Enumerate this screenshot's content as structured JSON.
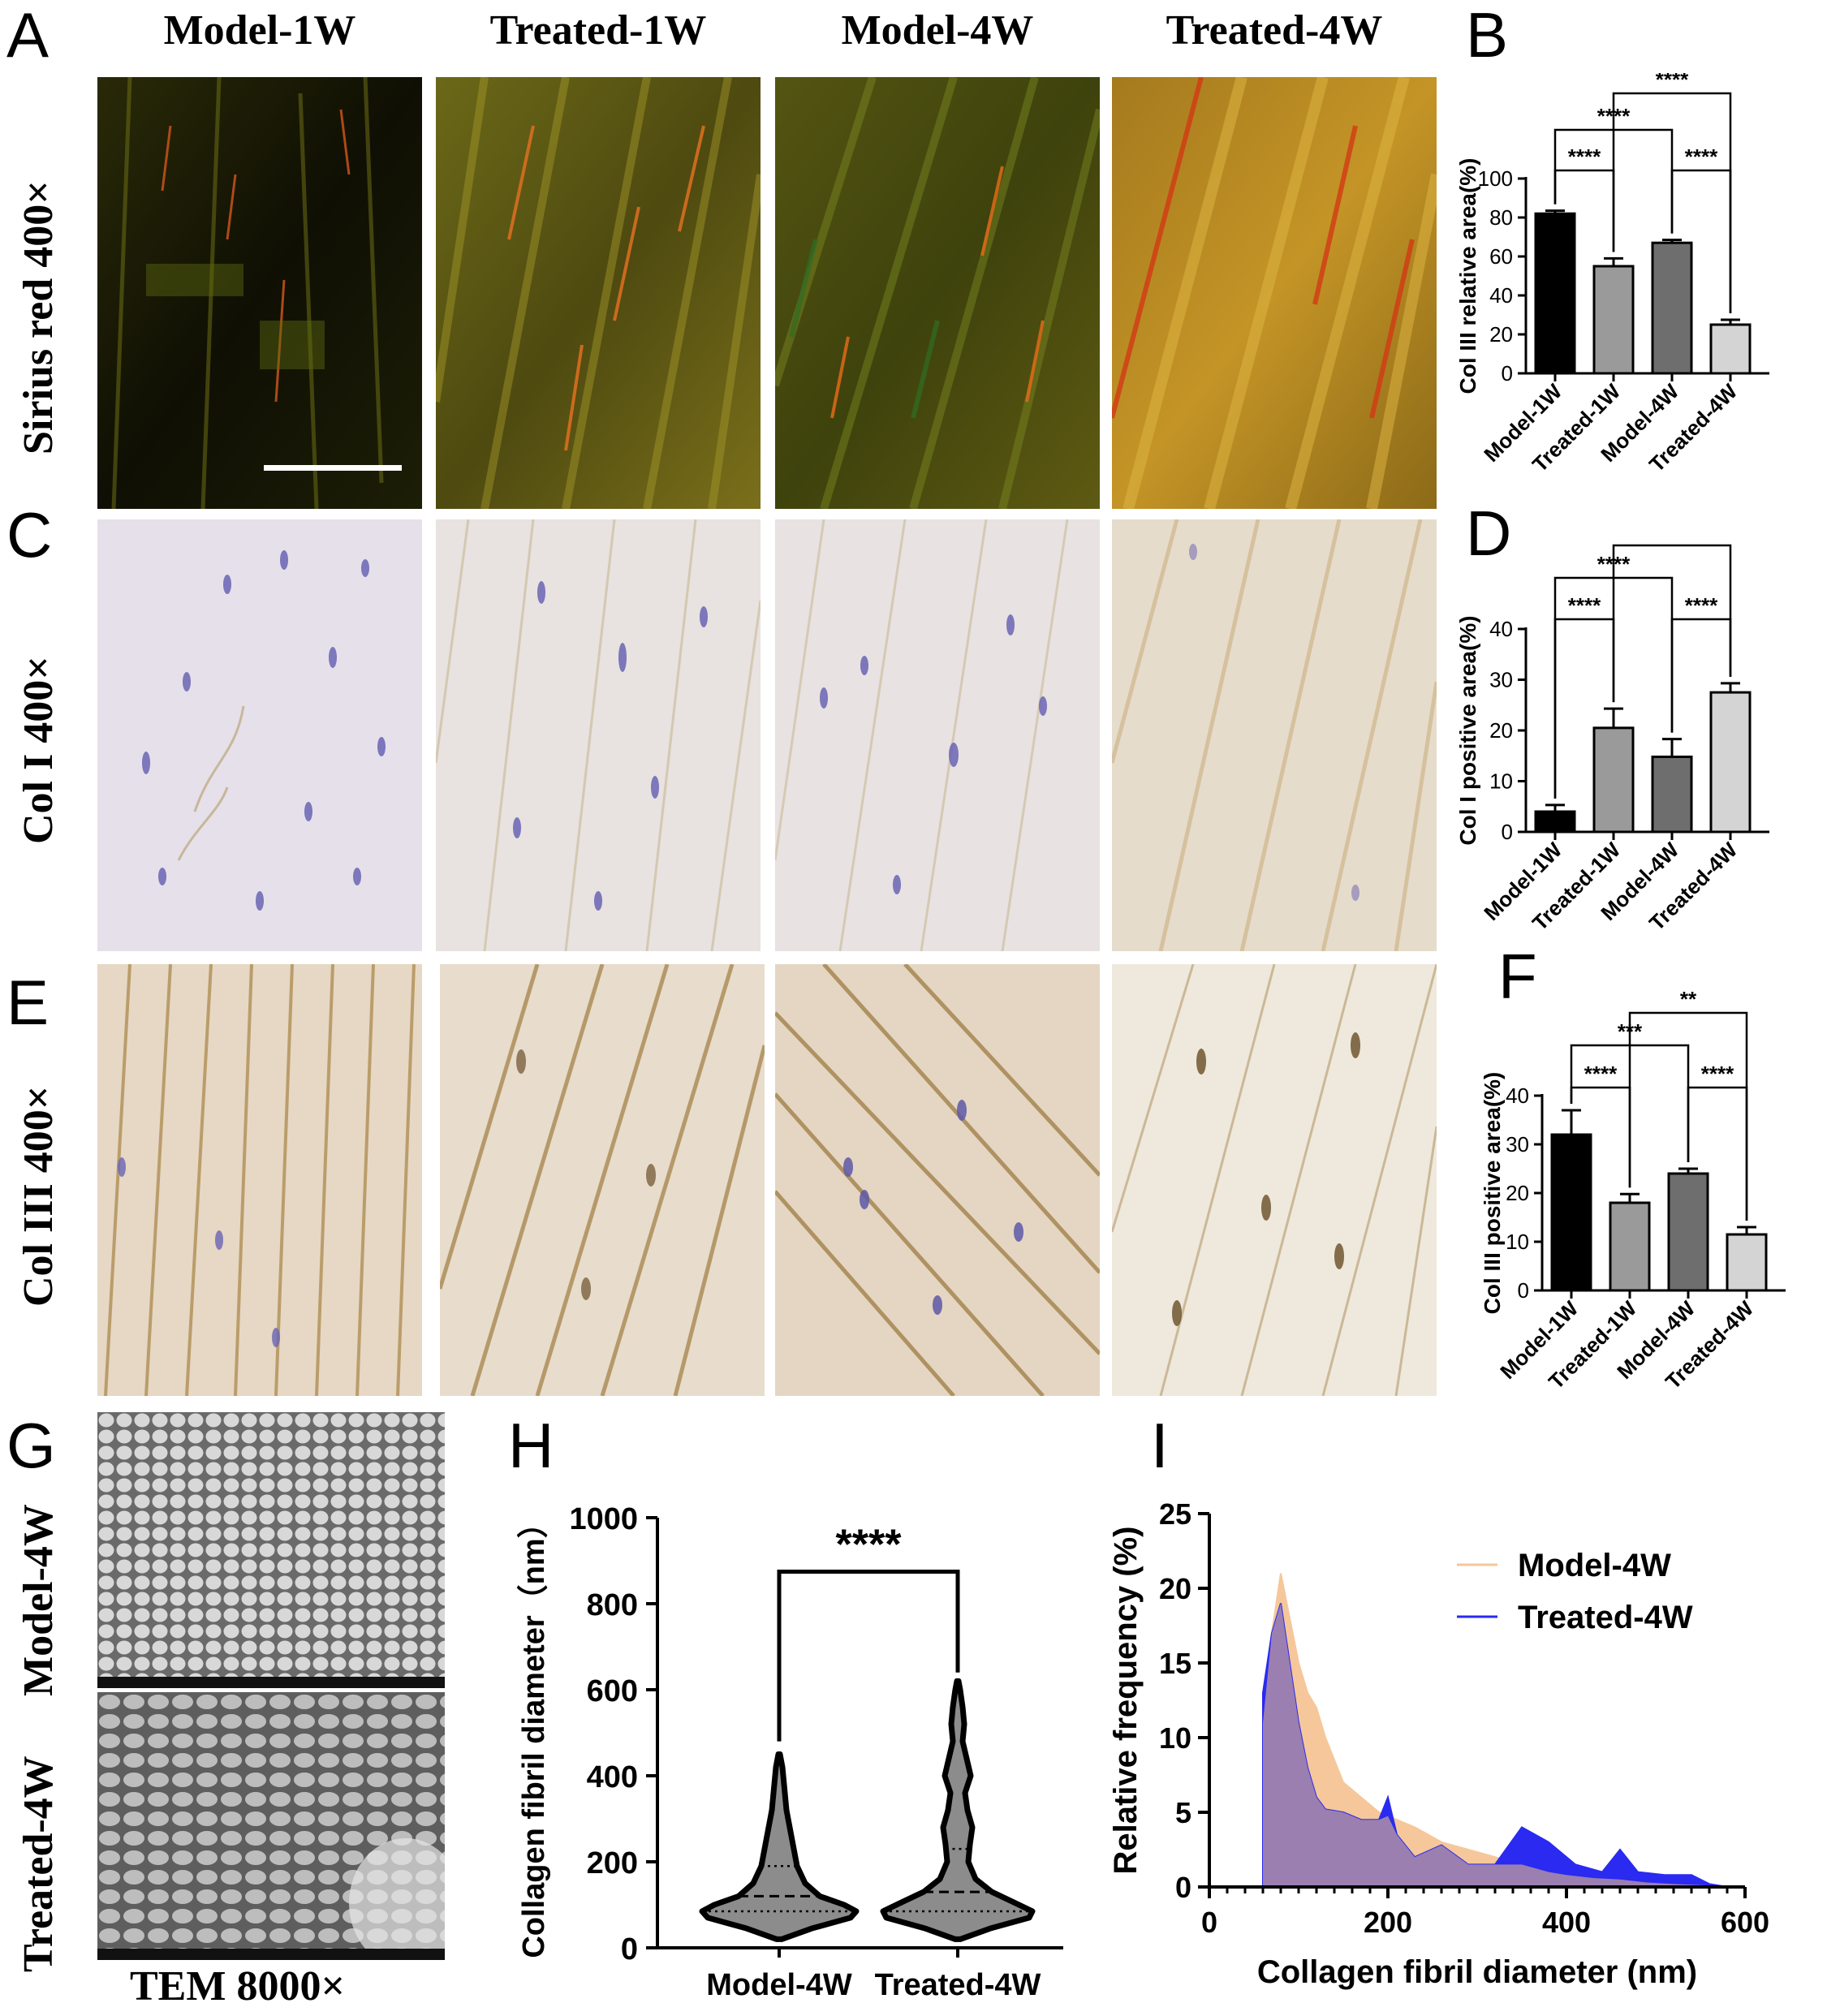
{
  "panel_labels": {
    "A": "A",
    "B": "B",
    "C": "C",
    "D": "D",
    "E": "E",
    "F": "F",
    "G": "G",
    "H": "H",
    "I": "I"
  },
  "column_titles": [
    "Model-1W",
    "Treated-1W",
    "Model-4W",
    "Treated-4W"
  ],
  "row_labels": {
    "sirius": "Sirius red 400×",
    "col1": "Col I 400×",
    "col3": "Col III 400×",
    "tem_model": "Model-4W",
    "tem_treated": "Treated-4W",
    "tem_footer": "TEM 8000×"
  },
  "colors": {
    "bar_model_1w": "#000000",
    "bar_treated_1w": "#9a9a9a",
    "bar_model_4w": "#6e6e6e",
    "bar_treated_4w": "#d4d4d4",
    "violin_fill": "#8c8c8c",
    "model_4w_area": "#f5c79a",
    "treated_4w_area": "#2a2af0",
    "overlap_area": "#9a7fb0"
  },
  "chart_data": [
    {
      "id": "B",
      "type": "bar",
      "ylabel": "Col III relative area(%)",
      "categories": [
        "Model-1W",
        "Treated-1W",
        "Model-4W",
        "Treated-4W"
      ],
      "values": [
        82,
        55,
        67,
        25
      ],
      "errors": [
        1.5,
        4,
        1.5,
        2.5
      ],
      "ylim": [
        0,
        100
      ],
      "yticks": [
        0,
        20,
        40,
        60,
        80,
        100
      ],
      "significance": [
        {
          "from": 0,
          "to": 1,
          "label": "****",
          "level": 1
        },
        {
          "from": 2,
          "to": 3,
          "label": "****",
          "level": 1
        },
        {
          "from": 0,
          "to": 2,
          "label": "****",
          "level": 2
        },
        {
          "from": 1,
          "to": 3,
          "label": "****",
          "level": 3
        }
      ]
    },
    {
      "id": "D",
      "type": "bar",
      "ylabel": "Col I positive area(%)",
      "categories": [
        "Model-1W",
        "Treated-1W",
        "Model-4W",
        "Treated-4W"
      ],
      "values": [
        4,
        20.5,
        14.8,
        27.5
      ],
      "errors": [
        1.3,
        3.8,
        3.5,
        1.8
      ],
      "ylim": [
        0,
        40
      ],
      "yticks": [
        0,
        10,
        20,
        30,
        40
      ],
      "significance": [
        {
          "from": 0,
          "to": 1,
          "label": "****",
          "level": 1
        },
        {
          "from": 2,
          "to": 3,
          "label": "****",
          "level": 1
        },
        {
          "from": 0,
          "to": 2,
          "label": "****",
          "level": 2
        },
        {
          "from": 1,
          "to": 3,
          "label": "**",
          "level": 3
        }
      ]
    },
    {
      "id": "F",
      "type": "bar",
      "ylabel": "Col III positive area(%)",
      "categories": [
        "Model-1W",
        "Treated-1W",
        "Model-4W",
        "Treated-4W"
      ],
      "values": [
        32,
        18,
        24,
        11.5
      ],
      "errors": [
        5,
        1.8,
        1,
        1.5
      ],
      "ylim": [
        0,
        40
      ],
      "yticks": [
        0,
        10,
        20,
        30,
        40
      ],
      "significance": [
        {
          "from": 0,
          "to": 1,
          "label": "****",
          "level": 1
        },
        {
          "from": 2,
          "to": 3,
          "label": "****",
          "level": 1
        },
        {
          "from": 0,
          "to": 2,
          "label": "***",
          "level": 2
        },
        {
          "from": 1,
          "to": 3,
          "label": "**",
          "level": 3
        }
      ]
    },
    {
      "id": "H",
      "type": "violin",
      "ylabel": "Collagen fibril diameter（nm）",
      "categories": [
        "Model-4W",
        "Treated-4W"
      ],
      "ylim": [
        0,
        1000
      ],
      "yticks": [
        0,
        200,
        400,
        600,
        800,
        1000
      ],
      "violins": [
        {
          "name": "Model-4W",
          "min": 20,
          "max": 450,
          "median": 120,
          "q1": 85,
          "q3": 190,
          "profile": [
            [
              20,
              3
            ],
            [
              45,
              40
            ],
            [
              70,
              88
            ],
            [
              85,
              95
            ],
            [
              100,
              80
            ],
            [
              120,
              50
            ],
            [
              150,
              32
            ],
            [
              190,
              22
            ],
            [
              230,
              18
            ],
            [
              270,
              14
            ],
            [
              320,
              9
            ],
            [
              380,
              6
            ],
            [
              420,
              4
            ],
            [
              450,
              1
            ]
          ]
        },
        {
          "name": "Treated-4W",
          "min": 20,
          "max": 620,
          "median": 130,
          "q1": 85,
          "q3": 230,
          "profile": [
            [
              20,
              3
            ],
            [
              45,
              40
            ],
            [
              70,
              88
            ],
            [
              85,
              92
            ],
            [
              105,
              70
            ],
            [
              130,
              42
            ],
            [
              160,
              22
            ],
            [
              200,
              13
            ],
            [
              240,
              15
            ],
            [
              280,
              18
            ],
            [
              320,
              12
            ],
            [
              360,
              9
            ],
            [
              400,
              16
            ],
            [
              440,
              11
            ],
            [
              480,
              6
            ],
            [
              520,
              8
            ],
            [
              560,
              6
            ],
            [
              600,
              3
            ],
            [
              620,
              1
            ]
          ]
        }
      ],
      "significance": [
        {
          "from": 0,
          "to": 1,
          "label": "****"
        }
      ]
    },
    {
      "id": "I",
      "type": "area",
      "xlabel": "Collagen fibril diameter (nm)",
      "ylabel": "Relative frequency (%)",
      "xlim": [
        0,
        600
      ],
      "ylim": [
        0,
        25
      ],
      "xticks": [
        0,
        200,
        400,
        600
      ],
      "yticks": [
        0,
        5,
        10,
        15,
        20,
        25
      ],
      "legend_position": "top-right",
      "series": [
        {
          "name": "Model-4W",
          "x": [
            60,
            70,
            80,
            90,
            100,
            110,
            120,
            130,
            150,
            170,
            190,
            210,
            230,
            260,
            290,
            320,
            350,
            380,
            400,
            430,
            460,
            490,
            520,
            560,
            580
          ],
          "y": [
            11,
            17,
            21,
            18,
            15,
            13,
            12,
            10,
            7,
            6,
            5,
            4.5,
            4,
            3,
            2.5,
            2,
            1.5,
            1,
            0.8,
            0.6,
            0.5,
            0.3,
            0.2,
            0.1,
            0
          ]
        },
        {
          "name": "Treated-4W",
          "x": [
            60,
            70,
            80,
            90,
            100,
            110,
            120,
            130,
            150,
            170,
            190,
            200,
            210,
            230,
            260,
            290,
            320,
            350,
            380,
            410,
            440,
            460,
            480,
            510,
            540,
            560,
            580
          ],
          "y": [
            13,
            17,
            19,
            15,
            11,
            8,
            6,
            5.2,
            5,
            4.5,
            4.5,
            6,
            3.5,
            2,
            2.8,
            1.5,
            1.5,
            4,
            3,
            1.5,
            1,
            2.5,
            1,
            0.8,
            0.8,
            0.2,
            0
          ]
        }
      ]
    }
  ]
}
